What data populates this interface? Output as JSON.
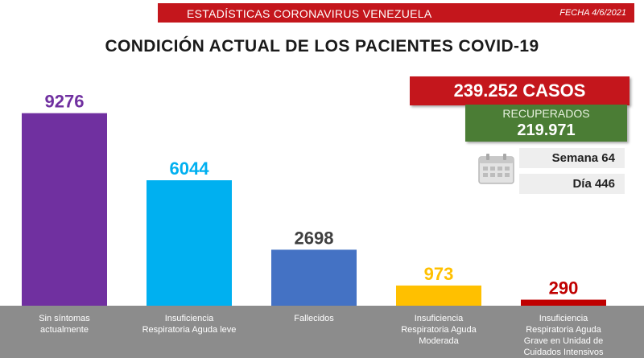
{
  "header": {
    "banner_title": "ESTADÍSTICAS CORONAVIRUS VENEZUELA",
    "date": "FECHA 4/6/2021"
  },
  "title": "CONDICIÓN ACTUAL DE LOS PACIENTES COVID-19",
  "summary": {
    "cases": "239.252 CASOS",
    "recovered_label": "RECUPERADOS",
    "recovered_value": "219.971",
    "week": "Semana 64",
    "day": "Día 446",
    "calendar_icon": "calendar-icon"
  },
  "colors": {
    "banner_red": "#c4161c",
    "recovered_green": "#4b7d35",
    "axis_band": "#8c8c8c"
  },
  "chart_data": {
    "type": "bar",
    "categories": [
      [
        "Sin síntomas",
        "actualmente"
      ],
      [
        "Insuficiencia",
        "Respiratoria Aguda leve"
      ],
      [
        "Fallecidos"
      ],
      [
        "Insuficiencia",
        "Respiratoria Aguda",
        "Moderada"
      ],
      [
        "Insuficiencia",
        "Respiratoria Aguda",
        "Grave en Unidad de",
        "Cuidados Intensivos"
      ]
    ],
    "values": [
      9276,
      6044,
      2698,
      973,
      290
    ],
    "bar_colors": [
      "#7030a0",
      "#00b0f0",
      "#4472c4",
      "#ffc000",
      "#c00000"
    ],
    "label_colors": [
      "#7030a0",
      "#00b0f0",
      "#404040",
      "#ffc000",
      "#c00000"
    ],
    "ylim": [
      0,
      10000
    ],
    "grid": false,
    "legend": "none"
  }
}
